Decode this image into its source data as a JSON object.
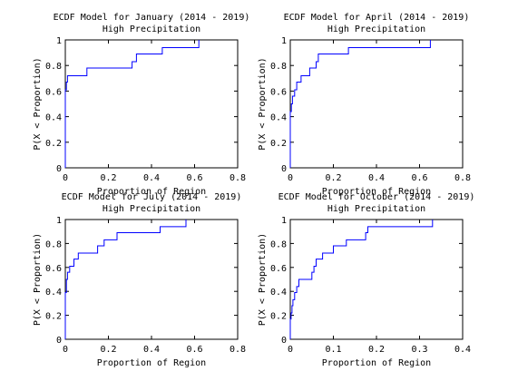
{
  "chart_data": [
    {
      "type": "line",
      "step": true,
      "title": "ECDF Model for January (2014 - 2019)",
      "subtitle": "High Precipitation",
      "xlabel": "Proportion of Region",
      "ylabel": "P(X < Proportion)",
      "xlim": [
        0,
        0.8
      ],
      "ylim": [
        0,
        1
      ],
      "xticks": [
        "0",
        "0.2",
        "0.4",
        "0.6",
        "0.8"
      ],
      "yticks": [
        "0",
        "0.2",
        "0.4",
        "0.6",
        "0.8",
        "1"
      ],
      "series": [
        {
          "color": "#0000ff",
          "x": [
            0,
            0,
            0.005,
            0.01,
            0.02,
            0.1,
            0.31,
            0.33,
            0.45,
            0.62,
            0.62
          ],
          "y": [
            0,
            0.61,
            0.67,
            0.72,
            0.72,
            0.78,
            0.83,
            0.89,
            0.94,
            1.0,
            1.0
          ]
        }
      ]
    },
    {
      "type": "line",
      "step": true,
      "title": "ECDF Model for April (2014 - 2019)",
      "subtitle": "High Precipitation",
      "xlabel": "Proportion of Region",
      "ylabel": "P(X < Proportion)",
      "xlim": [
        0,
        0.8
      ],
      "ylim": [
        0,
        1
      ],
      "xticks": [
        "0",
        "0.2",
        "0.4",
        "0.6",
        "0.8"
      ],
      "yticks": [
        "0",
        "0.2",
        "0.4",
        "0.6",
        "0.8",
        "1"
      ],
      "series": [
        {
          "color": "#0000ff",
          "x": [
            0,
            0,
            0.005,
            0.01,
            0.02,
            0.03,
            0.05,
            0.07,
            0.09,
            0.1,
            0.12,
            0.13,
            0.14,
            0.27,
            0.65,
            0.65
          ],
          "y": [
            0,
            0.44,
            0.5,
            0.56,
            0.61,
            0.67,
            0.72,
            0.72,
            0.78,
            0.78,
            0.83,
            0.89,
            0.89,
            0.94,
            1.0,
            1.0
          ]
        }
      ]
    },
    {
      "type": "line",
      "step": true,
      "title": "ECDF Model for July (2014 - 2019)",
      "subtitle": "High Precipitation",
      "xlabel": "Proportion of Region",
      "ylabel": "P(X < Proportion)",
      "xlim": [
        0,
        0.8
      ],
      "ylim": [
        0,
        1
      ],
      "xticks": [
        "0",
        "0.2",
        "0.4",
        "0.6",
        "0.8"
      ],
      "yticks": [
        "0",
        "0.2",
        "0.4",
        "0.6",
        "0.8",
        "1"
      ],
      "series": [
        {
          "color": "#0000ff",
          "x": [
            0,
            0,
            0.005,
            0.01,
            0.02,
            0.04,
            0.06,
            0.1,
            0.15,
            0.18,
            0.24,
            0.44,
            0.56,
            0.56
          ],
          "y": [
            0,
            0.39,
            0.5,
            0.56,
            0.61,
            0.67,
            0.72,
            0.72,
            0.78,
            0.83,
            0.89,
            0.94,
            1.0,
            1.0
          ]
        }
      ]
    },
    {
      "type": "line",
      "step": true,
      "title": "ECDF Model for October (2014 - 2019)",
      "subtitle": "High Precipitation",
      "xlabel": "Proportion of Region",
      "ylabel": "P(X < Proportion)",
      "xlim": [
        0,
        0.4
      ],
      "ylim": [
        0,
        1
      ],
      "xticks": [
        "0",
        "0.1",
        "0.2",
        "0.3",
        "0.4"
      ],
      "yticks": [
        "0",
        "0.2",
        "0.4",
        "0.6",
        "0.8",
        "1"
      ],
      "series": [
        {
          "color": "#0000ff",
          "x": [
            0,
            0,
            0.002,
            0.004,
            0.006,
            0.01,
            0.015,
            0.02,
            0.03,
            0.05,
            0.055,
            0.06,
            0.075,
            0.1,
            0.12,
            0.13,
            0.175,
            0.18,
            0.33,
            0.33
          ],
          "y": [
            0,
            0.17,
            0.22,
            0.28,
            0.33,
            0.39,
            0.44,
            0.5,
            0.5,
            0.56,
            0.61,
            0.67,
            0.72,
            0.78,
            0.78,
            0.83,
            0.89,
            0.94,
            1.0,
            1.0
          ]
        }
      ]
    }
  ]
}
